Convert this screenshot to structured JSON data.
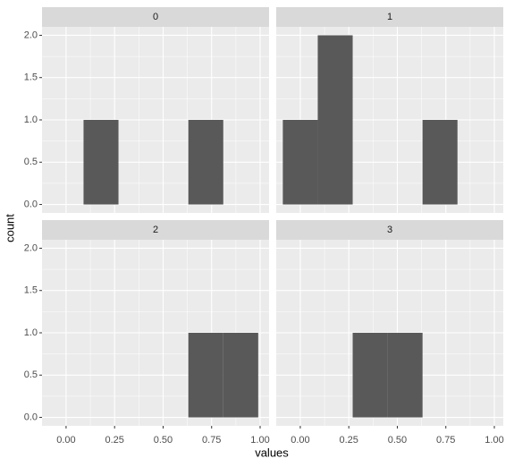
{
  "chart_data": {
    "type": "histogram",
    "x_label": "values",
    "y_label": "count",
    "color": "#595959",
    "xlim": [
      -0.124,
      1.046
    ],
    "ylim": [
      -0.1,
      2.1
    ],
    "xticks": [
      {
        "value": 0,
        "label": "0.00"
      },
      {
        "value": 0.25,
        "label": "0.25"
      },
      {
        "value": 0.5,
        "label": "0.50"
      },
      {
        "value": 0.75,
        "label": "0.75"
      },
      {
        "value": 1,
        "label": "1.00"
      }
    ],
    "yticks": [
      {
        "value": 0,
        "label": "0.0"
      },
      {
        "value": 0.5,
        "label": "0.5"
      },
      {
        "value": 1,
        "label": "1.0"
      },
      {
        "value": 1.5,
        "label": "1.5"
      },
      {
        "value": 2,
        "label": "2.0"
      }
    ],
    "grid": true,
    "bins": [
      -0.09,
      0.09,
      0.27,
      0.45,
      0.63,
      0.81,
      0.99
    ],
    "facets": [
      {
        "title": "0",
        "counts": [
          0,
          1,
          0,
          0,
          1,
          0
        ]
      },
      {
        "title": "1",
        "counts": [
          1,
          2,
          0,
          0,
          1,
          0
        ]
      },
      {
        "title": "2",
        "counts": [
          0,
          0,
          0,
          0,
          1,
          1
        ]
      },
      {
        "title": "3",
        "counts": [
          0,
          0,
          1,
          1,
          0,
          0
        ]
      }
    ]
  }
}
